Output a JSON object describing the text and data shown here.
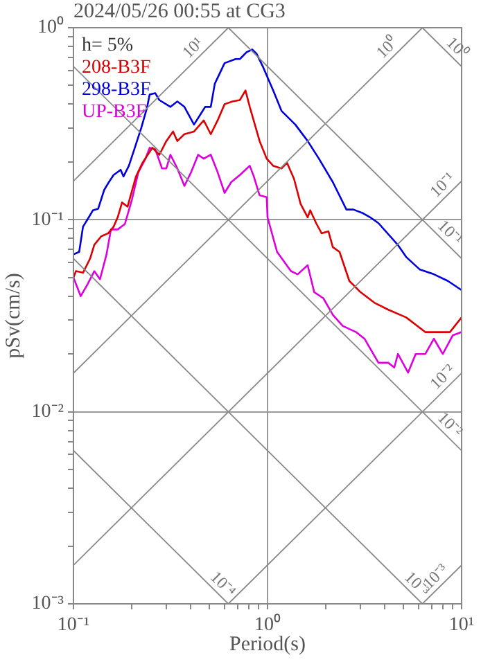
{
  "chart_data": {
    "type": "line",
    "title": "2024/05/26 00:55 at CG3",
    "xlabel": "Period(s)",
    "ylabel": "pSv(cm/s)",
    "log": "xy",
    "grid": true,
    "legend": "top left",
    "marker": "none",
    "line_style": "solid",
    "xlim": [
      0.1,
      10
    ],
    "ylim": [
      0.001,
      1
    ],
    "xticks": [
      {
        "value": 0.1,
        "label": "10⁻¹"
      },
      {
        "value": 0.2,
        "label": null
      },
      {
        "value": 0.3,
        "label": null
      },
      {
        "value": 0.4,
        "label": null
      },
      {
        "value": 0.5,
        "label": null
      },
      {
        "value": 0.6,
        "label": null
      },
      {
        "value": 0.7,
        "label": null
      },
      {
        "value": 0.8,
        "label": null
      },
      {
        "value": 0.9,
        "label": null
      },
      {
        "value": 1,
        "label": "10⁰"
      },
      {
        "value": 2,
        "label": null
      },
      {
        "value": 3,
        "label": null
      },
      {
        "value": 4,
        "label": null
      },
      {
        "value": 5,
        "label": null
      },
      {
        "value": 6,
        "label": null
      },
      {
        "value": 7,
        "label": null
      },
      {
        "value": 8,
        "label": null
      },
      {
        "value": 9,
        "label": null
      },
      {
        "value": 10,
        "label": "10¹"
      }
    ],
    "yticks": [
      {
        "value": 0.001,
        "label": "10⁻³"
      },
      {
        "value": 0.002,
        "label": null
      },
      {
        "value": 0.003,
        "label": null
      },
      {
        "value": 0.004,
        "label": null
      },
      {
        "value": 0.005,
        "label": null
      },
      {
        "value": 0.006,
        "label": null
      },
      {
        "value": 0.007,
        "label": null
      },
      {
        "value": 0.008,
        "label": null
      },
      {
        "value": 0.009,
        "label": null
      },
      {
        "value": 0.01,
        "label": "10⁻²"
      },
      {
        "value": 0.02,
        "label": null
      },
      {
        "value": 0.03,
        "label": null
      },
      {
        "value": 0.04,
        "label": null
      },
      {
        "value": 0.05,
        "label": null
      },
      {
        "value": 0.06,
        "label": null
      },
      {
        "value": 0.07,
        "label": null
      },
      {
        "value": 0.08,
        "label": null
      },
      {
        "value": 0.09,
        "label": null
      },
      {
        "value": 0.1,
        "label": "10⁻¹"
      },
      {
        "value": 0.2,
        "label": null
      },
      {
        "value": 0.3,
        "label": null
      },
      {
        "value": 0.4,
        "label": null
      },
      {
        "value": 0.5,
        "label": null
      },
      {
        "value": 0.6,
        "label": null
      },
      {
        "value": 0.7,
        "label": null
      },
      {
        "value": 0.8,
        "label": null
      },
      {
        "value": 0.9,
        "label": null
      },
      {
        "value": 1,
        "label": "10⁰"
      }
    ],
    "annotations": [
      "h= 5%",
      {
        "text": "10¹",
        "x": 0.45,
        "y": 0.72
      },
      {
        "text": "10⁰",
        "x": 4.5,
        "y": 0.72
      },
      {
        "text": "10⁰",
        "x": 8.7,
        "y": 0.72
      },
      {
        "text": "10⁻¹",
        "x": 8.7,
        "y": 0.139
      },
      {
        "text": "10⁻¹",
        "x": 8.0,
        "y": 0.0785
      },
      {
        "text": "10⁻²",
        "x": 8.7,
        "y": 0.0139
      },
      {
        "text": "10⁻²",
        "x": 8.0,
        "y": 0.00785
      },
      {
        "text": "10⁻³",
        "x": 8.0,
        "y": 0.00127
      },
      {
        "text": "10⁻³",
        "x": 5.4,
        "y": 0.00116
      },
      {
        "text": "10⁻⁴",
        "x": 0.54,
        "y": 0.00116
      }
    ],
    "series": [
      {
        "type": "line",
        "color": "#888888",
        "x": [
          0.1,
          0.628
        ],
        "values": [
          0.159,
          1
        ]
      },
      {
        "type": "line",
        "color": "#888888",
        "x": [
          0.1,
          6.28
        ],
        "values": [
          0.0159,
          1
        ]
      },
      {
        "type": "line",
        "color": "#888888",
        "x": [
          0.1,
          10
        ],
        "values": [
          0.00159,
          0.159
        ]
      },
      {
        "type": "line",
        "color": "#888888",
        "x": [
          0.628,
          10
        ],
        "values": [
          0.001,
          0.0159
        ]
      },
      {
        "type": "line",
        "color": "#888888",
        "x": [
          6.28,
          10
        ],
        "values": [
          0.001,
          0.00159
        ]
      },
      {
        "type": "line",
        "color": "#888888",
        "x": [
          6.28,
          10
        ],
        "values": [
          1,
          0.628
        ]
      },
      {
        "type": "line",
        "color": "#888888",
        "x": [
          0.628,
          10
        ],
        "values": [
          1,
          0.0628
        ]
      },
      {
        "type": "line",
        "color": "#888888",
        "x": [
          0.1,
          10
        ],
        "values": [
          0.628,
          0.00628
        ]
      },
      {
        "type": "line",
        "color": "#888888",
        "x": [
          0.1,
          6.28
        ],
        "values": [
          0.0628,
          0.001
        ]
      },
      {
        "type": "line",
        "color": "#888888",
        "x": [
          0.1,
          0.628
        ],
        "values": [
          0.00628,
          0.001
        ]
      },
      {
        "type": "line",
        "name": "208-B3F",
        "color": "#dd0000",
        "x": [
          0.1,
          0.103,
          0.112,
          0.122,
          0.128,
          0.139,
          0.151,
          0.161,
          0.169,
          0.178,
          0.19,
          0.206,
          0.21,
          0.227,
          0.255,
          0.277,
          0.301,
          0.326,
          0.343,
          0.373,
          0.418,
          0.469,
          0.51,
          0.553,
          0.601,
          0.66,
          0.72,
          0.77,
          0.81,
          0.91,
          0.99,
          1.07,
          1.18,
          1.26,
          1.37,
          1.48,
          1.61,
          1.66,
          1.78,
          1.9,
          2.06,
          2.17,
          2.35,
          2.64,
          3.01,
          3.55,
          4.19,
          5.18,
          6.5,
          7.6,
          8.7,
          10
        ],
        "values": [
          0.05,
          0.054,
          0.053,
          0.063,
          0.074,
          0.082,
          0.085,
          0.092,
          0.103,
          0.123,
          0.117,
          0.157,
          0.168,
          0.198,
          0.237,
          0.218,
          0.257,
          0.288,
          0.257,
          0.279,
          0.288,
          0.329,
          0.279,
          0.329,
          0.4,
          0.413,
          0.42,
          0.471,
          0.387,
          0.257,
          0.208,
          0.191,
          0.185,
          0.198,
          0.163,
          0.121,
          0.103,
          0.112,
          0.096,
          0.085,
          0.087,
          0.072,
          0.068,
          0.048,
          0.042,
          0.037,
          0.034,
          0.031,
          0.026,
          0.026,
          0.026,
          0.031
        ]
      },
      {
        "type": "line",
        "name": "298-B3F",
        "color": "#0000dd",
        "x": [
          0.1,
          0.107,
          0.112,
          0.12,
          0.126,
          0.134,
          0.144,
          0.151,
          0.161,
          0.175,
          0.181,
          0.193,
          0.206,
          0.224,
          0.239,
          0.247,
          0.264,
          0.277,
          0.316,
          0.343,
          0.373,
          0.418,
          0.454,
          0.477,
          0.51,
          0.535,
          0.601,
          0.685,
          0.72,
          0.78,
          0.834,
          0.877,
          0.95,
          1.07,
          1.18,
          1.39,
          1.61,
          1.84,
          2.17,
          2.55,
          2.77,
          3.11,
          3.38,
          3.73,
          4.69,
          5.18,
          6.1,
          7.2,
          8.5,
          10
        ],
        "values": [
          0.066,
          0.068,
          0.092,
          0.103,
          0.112,
          0.114,
          0.143,
          0.155,
          0.171,
          0.182,
          0.168,
          0.191,
          0.233,
          0.303,
          0.381,
          0.449,
          0.456,
          0.42,
          0.387,
          0.413,
          0.387,
          0.313,
          0.357,
          0.387,
          0.387,
          0.511,
          0.654,
          0.687,
          0.687,
          0.745,
          0.77,
          0.733,
          0.622,
          0.471,
          0.369,
          0.313,
          0.257,
          0.208,
          0.157,
          0.113,
          0.113,
          0.108,
          0.103,
          0.096,
          0.074,
          0.064,
          0.055,
          0.052,
          0.048,
          0.043
        ]
      },
      {
        "type": "line",
        "name": "UP-B3F",
        "color": "#dd00dd",
        "x": [
          0.1,
          0.109,
          0.118,
          0.128,
          0.137,
          0.148,
          0.156,
          0.169,
          0.184,
          0.2,
          0.216,
          0.235,
          0.247,
          0.264,
          0.286,
          0.301,
          0.316,
          0.343,
          0.373,
          0.404,
          0.439,
          0.469,
          0.51,
          0.553,
          0.601,
          0.65,
          0.72,
          0.81,
          0.85,
          0.91,
          0.99,
          1.0,
          1.12,
          1.32,
          1.43,
          1.61,
          1.74,
          1.94,
          2.17,
          2.44,
          2.86,
          3.16,
          3.73,
          4.19,
          4.5,
          4.7,
          5.3,
          5.8,
          6.5,
          7.2,
          8.0,
          9.0,
          10
        ],
        "values": [
          0.05,
          0.04,
          0.046,
          0.054,
          0.049,
          0.066,
          0.089,
          0.089,
          0.095,
          0.127,
          0.177,
          0.208,
          0.237,
          0.233,
          0.185,
          0.185,
          0.218,
          0.185,
          0.15,
          0.177,
          0.218,
          0.208,
          0.218,
          0.177,
          0.138,
          0.157,
          0.171,
          0.191,
          0.168,
          0.134,
          0.131,
          0.103,
          0.068,
          0.054,
          0.052,
          0.058,
          0.042,
          0.039,
          0.032,
          0.028,
          0.026,
          0.024,
          0.018,
          0.018,
          0.017,
          0.02,
          0.016,
          0.02,
          0.02,
          0.024,
          0.02,
          0.025,
          0.026
        ]
      }
    ]
  }
}
